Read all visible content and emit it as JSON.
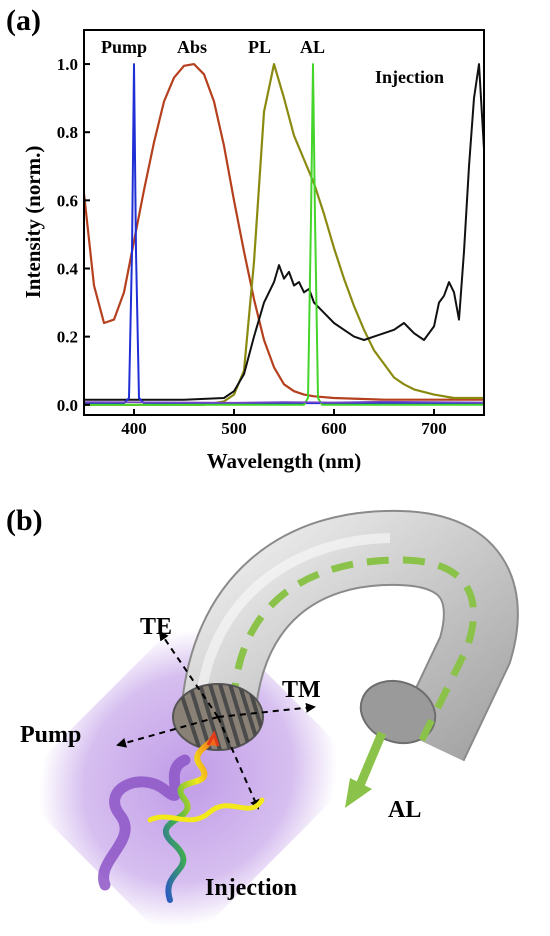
{
  "panel_a": {
    "label": "(a)"
  },
  "panel_b": {
    "label": "(b)",
    "labels": {
      "te": "TE",
      "tm": "TM",
      "pump": "Pump",
      "al": "AL",
      "injection": "Injection"
    },
    "colors": {
      "tube": "#d9d9d9",
      "guide": "#8bc34a",
      "haze": "#9b6bd0",
      "grating": "#707070"
    }
  },
  "chart_data": {
    "type": "line",
    "xlabel": "Wavelength (nm)",
    "ylabel": "Intensity (norm.)",
    "xlim": [
      350,
      750
    ],
    "ylim": [
      -0.03,
      1.1
    ],
    "xticks": [
      400,
      500,
      600,
      700
    ],
    "yticks": [
      0.0,
      0.2,
      0.4,
      0.6,
      0.8,
      1.0
    ],
    "grid": false,
    "series": [
      {
        "name": "Abs",
        "color": "#b5401e",
        "width": 2.2,
        "x": [
          350,
          360,
          370,
          380,
          390,
          400,
          410,
          420,
          430,
          440,
          450,
          460,
          470,
          480,
          490,
          500,
          510,
          520,
          530,
          540,
          550,
          560,
          570,
          580,
          600,
          650,
          700,
          750
        ],
        "y": [
          0.62,
          0.35,
          0.24,
          0.25,
          0.33,
          0.48,
          0.63,
          0.77,
          0.89,
          0.96,
          0.995,
          1.0,
          0.97,
          0.89,
          0.76,
          0.6,
          0.45,
          0.31,
          0.19,
          0.11,
          0.06,
          0.04,
          0.03,
          0.025,
          0.02,
          0.015,
          0.015,
          0.015
        ]
      },
      {
        "name": "PL",
        "color": "#8a8a10",
        "width": 2.2,
        "x": [
          350,
          470,
          490,
          500,
          510,
          520,
          530,
          540,
          550,
          560,
          570,
          580,
          590,
          600,
          610,
          620,
          630,
          640,
          650,
          660,
          670,
          680,
          700,
          720,
          750
        ],
        "y": [
          0.0,
          0.0,
          0.01,
          0.03,
          0.1,
          0.42,
          0.86,
          1.0,
          0.9,
          0.79,
          0.72,
          0.65,
          0.56,
          0.46,
          0.37,
          0.29,
          0.22,
          0.16,
          0.12,
          0.08,
          0.06,
          0.045,
          0.03,
          0.02,
          0.02
        ]
      },
      {
        "name": "Injection",
        "color": "#111111",
        "width": 2.0,
        "x": [
          350,
          450,
          490,
          500,
          510,
          520,
          530,
          540,
          545,
          550,
          555,
          560,
          565,
          570,
          575,
          580,
          590,
          600,
          610,
          620,
          630,
          640,
          650,
          660,
          670,
          680,
          690,
          700,
          705,
          710,
          715,
          720,
          725,
          730,
          735,
          740,
          745,
          750
        ],
        "y": [
          0.015,
          0.015,
          0.02,
          0.04,
          0.09,
          0.2,
          0.3,
          0.36,
          0.41,
          0.37,
          0.39,
          0.35,
          0.36,
          0.33,
          0.34,
          0.3,
          0.27,
          0.24,
          0.22,
          0.2,
          0.19,
          0.2,
          0.21,
          0.22,
          0.24,
          0.21,
          0.19,
          0.23,
          0.3,
          0.32,
          0.36,
          0.33,
          0.25,
          0.45,
          0.7,
          0.9,
          1.0,
          0.75
        ]
      },
      {
        "name": "Pump",
        "color": "#1f2fd6",
        "width": 2.0,
        "x": [
          350,
          390,
          395,
          398,
          400,
          402,
          405,
          410,
          500,
          600,
          700,
          750
        ],
        "y": [
          0.005,
          0.005,
          0.02,
          0.45,
          1.0,
          0.45,
          0.02,
          0.005,
          0.005,
          0.005,
          0.005,
          0.005
        ]
      },
      {
        "name": "AL",
        "color": "#44d42a",
        "width": 2.0,
        "x": [
          350,
          570,
          574,
          577,
          579,
          581,
          584,
          588,
          750
        ],
        "y": [
          0.0,
          0.0,
          0.02,
          0.55,
          1.0,
          0.55,
          0.02,
          0.0,
          0.0
        ]
      },
      {
        "name": "",
        "color": "#7a44c8",
        "width": 1.6,
        "x": [
          350,
          450,
          500,
          550,
          600,
          650,
          700,
          750
        ],
        "y": [
          0.008,
          0.007,
          0.006,
          0.008,
          0.007,
          0.009,
          0.008,
          0.007
        ]
      }
    ],
    "annotations": [
      {
        "text": "Pump",
        "near_x": 380
      },
      {
        "text": "Abs",
        "near_x": 450
      },
      {
        "text": "PL",
        "near_x": 532
      },
      {
        "text": "AL",
        "near_x": 590
      },
      {
        "text": "Injection",
        "near_x": 705
      }
    ]
  }
}
